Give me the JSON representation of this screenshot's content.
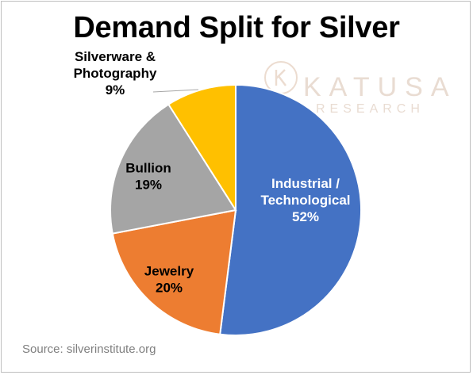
{
  "title": "Demand Split for Silver",
  "source": "Source: silverinstitute.org",
  "watermark": {
    "name": "KATUSA",
    "sub": "RESEARCH"
  },
  "chart_data": {
    "type": "pie",
    "title": "Demand Split for Silver",
    "slices": [
      {
        "label_lines": [
          "Industrial /",
          "Technological"
        ],
        "value": 52,
        "pct_label": "52%",
        "color": "#4472c4",
        "label_color": "#ffffff"
      },
      {
        "label_lines": [
          "Jewelry"
        ],
        "value": 20,
        "pct_label": "20%",
        "color": "#ed7d31",
        "label_color": "#000000"
      },
      {
        "label_lines": [
          "Bullion"
        ],
        "value": 19,
        "pct_label": "19%",
        "color": "#a5a5a5",
        "label_color": "#000000"
      },
      {
        "label_lines": [
          "Silverware &",
          "Photography"
        ],
        "value": 9,
        "pct_label": "9%",
        "color": "#ffc000",
        "label_color": "#000000"
      }
    ]
  }
}
